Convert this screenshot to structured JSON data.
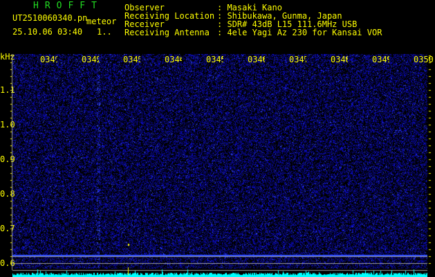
{
  "header": {
    "title": "HROFFT",
    "filename": "UT2510060340.pn",
    "mode": "meteor",
    "datetime": "25.10.06 03:40",
    "counter": "1..",
    "fields": [
      {
        "label": "Observer",
        "value": ": Masaki Kano"
      },
      {
        "label": "Receiving Location",
        "value": ": Shibukawa, Gunma, Japan"
      },
      {
        "label": "Receiver",
        "value": ": SDR# 43dB L15 111.6MHz USB"
      },
      {
        "label": "Receiving Antenna",
        "value": ": 4ele Yagi Az 230 for Kansai VOR"
      }
    ]
  },
  "axis": {
    "unit": "kHz",
    "time_labels": [
      "0341",
      "0342",
      "0343",
      "0344",
      "0345",
      "0346",
      "0347",
      "0348",
      "0349",
      "0350"
    ],
    "freq_labels": [
      "1.1",
      "1.0",
      "0.9",
      "0.8",
      "0.7",
      "0.6"
    ]
  },
  "colors": {
    "text": "#ffff00",
    "title": "#22dd22",
    "noise": "#2020c0",
    "spectrum": "#00ffff",
    "grid": "#a0a0a0"
  }
}
